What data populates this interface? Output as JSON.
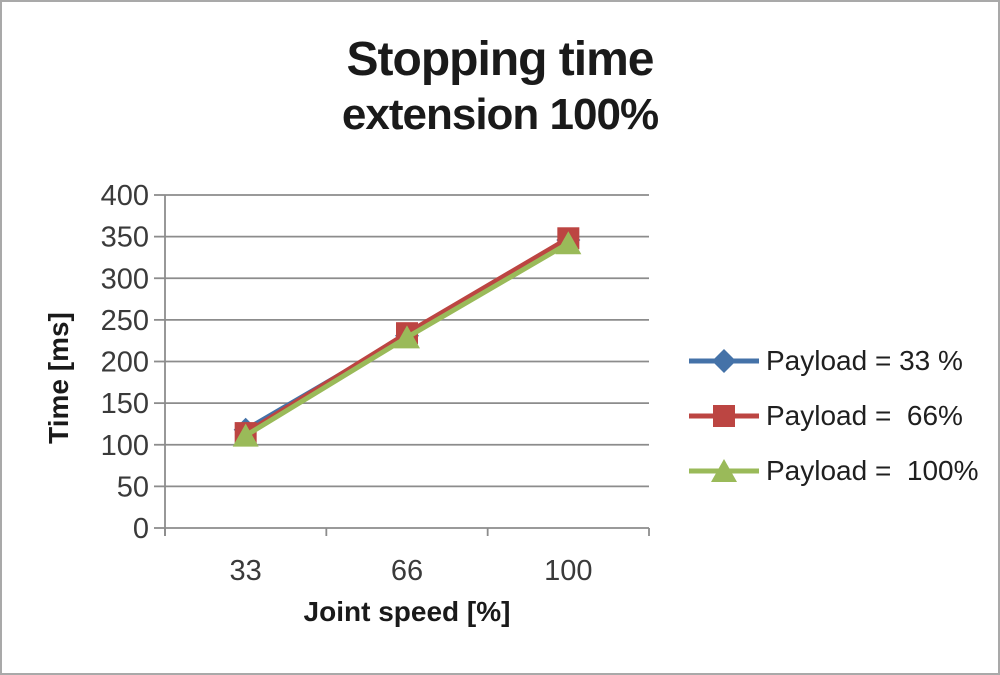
{
  "window": {
    "background": "#ffffff",
    "border_color": "#a9a9a9"
  },
  "chart_data": {
    "type": "line",
    "title": "Stopping time",
    "subtitle": "extension 100%",
    "xlabel": "Joint speed [%]",
    "ylabel": "Time [ms]",
    "categories": [
      "33",
      "66",
      "100"
    ],
    "ylim": [
      0,
      400
    ],
    "ytick_step": 50,
    "yticks": [
      0,
      50,
      100,
      150,
      200,
      250,
      300,
      350,
      400
    ],
    "grid": true,
    "legend_position": "right",
    "series": [
      {
        "name": "Payload = 33 %",
        "color": "#4472a8",
        "marker": "diamond",
        "values": [
          118,
          231,
          346
        ]
      },
      {
        "name": "Payload =  66%",
        "color": "#bc4542",
        "marker": "square",
        "values": [
          114,
          234,
          348
        ]
      },
      {
        "name": "Payload =  100%",
        "color": "#9aba59",
        "marker": "triangle",
        "values": [
          111,
          229,
          342
        ]
      }
    ],
    "colors": {
      "grid": "#8c8c8c",
      "axis": "#8c8c8c",
      "tick_text": "#3a3a3a",
      "title_text": "#1a1a1a"
    }
  }
}
